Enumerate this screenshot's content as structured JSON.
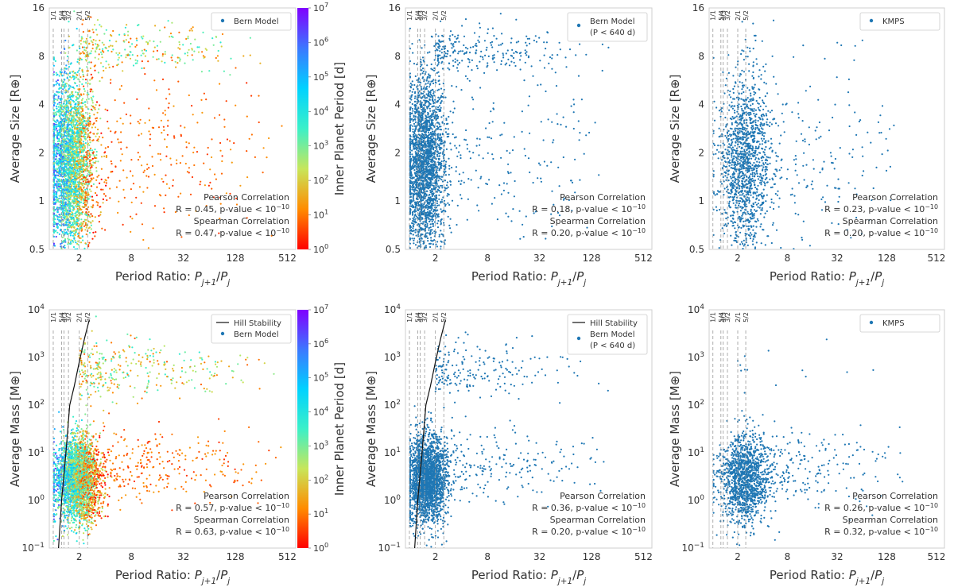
{
  "colors": {
    "point": "#1f77b4",
    "resonance_line": "#999999",
    "hill_line": "#111111",
    "frame": "#cfcfcf",
    "colormap": [
      "#ff0000",
      "#ff8c00",
      "#c8e65a",
      "#3cf0c8",
      "#00d2ff",
      "#3c78ff",
      "#8000ff"
    ]
  },
  "chart_data": [
    {
      "type": "scatter",
      "panel": "top-left",
      "xlabel": "Period Ratio: P_{j+1}/P_j",
      "ylabel": "Average Size [R⊕]",
      "xscale": "log2",
      "yscale": "log2",
      "xlim": [
        0.9,
        640
      ],
      "ylim": [
        0.5,
        16
      ],
      "xticks": [
        2,
        8,
        32,
        128,
        512
      ],
      "xtick_labels": [
        "2",
        "8",
        "32",
        "128",
        "512"
      ],
      "yticks": [
        0.5,
        1,
        2,
        4,
        8,
        16
      ],
      "ytick_labels": [
        "0.5",
        "1",
        "2",
        "4",
        "8",
        "16"
      ],
      "resonances": [
        1.0,
        1.25,
        1.333,
        1.5,
        2.0,
        2.5
      ],
      "resonance_labels": [
        "1/1",
        "5/4",
        "4/3",
        "3/2",
        "2/1",
        "5/2"
      ],
      "legend": [
        "Bern Model"
      ],
      "legend_loc": "top-right",
      "colorbar": {
        "label": "Inner Planet Period [d]",
        "ticks": [
          "10⁰",
          "10¹",
          "10²",
          "10³",
          "10⁴",
          "10⁵",
          "10⁶",
          "10⁷"
        ],
        "range": [
          1,
          10000000
        ]
      },
      "annotation": [
        "Pearson Correlation",
        "R = 0.45, p-value < 10⁻¹⁰",
        "Spearman Correlation",
        "R = 0.47, p-value < 10⁻¹⁰"
      ],
      "generator": {
        "kind": "size",
        "seed": 11,
        "n_main": 3000,
        "n_tail": 320,
        "n_giant": 260,
        "x_center": 1.6,
        "x_spread": 0.95,
        "tail_max": 512,
        "colored": true
      }
    },
    {
      "type": "scatter",
      "panel": "top-middle",
      "xlabel": "Period Ratio: P_{j+1}/P_j",
      "ylabel": "Average Size [R⊕]",
      "xscale": "log2",
      "yscale": "log2",
      "xlim": [
        0.9,
        640
      ],
      "ylim": [
        0.5,
        16
      ],
      "xticks": [
        2,
        8,
        32,
        128,
        512
      ],
      "xtick_labels": [
        "2",
        "8",
        "32",
        "128",
        "512"
      ],
      "yticks": [
        0.5,
        1,
        2,
        4,
        8,
        16
      ],
      "ytick_labels": [
        "0.5",
        "1",
        "2",
        "4",
        "8",
        "16"
      ],
      "resonances": [
        1.0,
        1.25,
        1.333,
        1.5,
        2.0,
        2.5
      ],
      "resonance_labels": [
        "1/1",
        "5/4",
        "4/3",
        "3/2",
        "2/1",
        "5/2"
      ],
      "legend": [
        "Bern Model",
        "(P < 640 d)"
      ],
      "legend_loc": "top-right",
      "annotation": [
        "Pearson Correlation",
        "R = 0.18, p-value < 10⁻¹⁰",
        "Spearman Correlation",
        "R = 0.20, p-value < 10⁻¹⁰"
      ],
      "generator": {
        "kind": "size",
        "seed": 23,
        "n_main": 2300,
        "n_tail": 220,
        "n_giant": 230,
        "x_center": 1.5,
        "x_spread": 0.8,
        "tail_max": 256,
        "colored": false
      }
    },
    {
      "type": "scatter",
      "panel": "top-right",
      "xlabel": "Period Ratio: P_{j+1}/P_j",
      "ylabel": "Average Size [R⊕]",
      "xscale": "log2",
      "yscale": "log2",
      "xlim": [
        0.9,
        640
      ],
      "ylim": [
        0.5,
        16
      ],
      "xticks": [
        2,
        8,
        32,
        128,
        512
      ],
      "xtick_labels": [
        "2",
        "8",
        "32",
        "128",
        "512"
      ],
      "yticks": [
        0.5,
        1,
        2,
        4,
        8,
        16
      ],
      "ytick_labels": [
        "0.5",
        "1",
        "2",
        "4",
        "8",
        "16"
      ],
      "resonances": [
        1.0,
        1.25,
        1.333,
        1.5,
        2.0,
        2.5
      ],
      "resonance_labels": [
        "1/1",
        "5/4",
        "4/3",
        "3/2",
        "2/1",
        "5/2"
      ],
      "legend": [
        "KMPS"
      ],
      "legend_loc": "top-right",
      "annotation": [
        "Pearson Correlation",
        "R = 0.23, p-value < 10⁻¹⁰",
        "Spearman Correlation",
        "R = 0.20, p-value < 10⁻¹⁰"
      ],
      "generator": {
        "kind": "size",
        "seed": 37,
        "n_main": 1300,
        "n_tail": 260,
        "n_giant": 20,
        "x_center": 2.4,
        "x_spread": 1.1,
        "tail_max": 300,
        "colored": false
      }
    },
    {
      "type": "scatter",
      "panel": "bottom-left",
      "xlabel": "Period Ratio: P_{j+1}/P_j",
      "ylabel": "Average Mass [M⊕]",
      "xscale": "log2",
      "yscale": "log10",
      "xlim": [
        0.9,
        640
      ],
      "ylim": [
        0.1,
        10000
      ],
      "xticks": [
        2,
        8,
        32,
        128,
        512
      ],
      "xtick_labels": [
        "2",
        "8",
        "32",
        "128",
        "512"
      ],
      "yticks": [
        0.1,
        1,
        10,
        100,
        1000,
        10000
      ],
      "ytick_labels": [
        "10⁻¹",
        "10⁰",
        "10¹",
        "10²",
        "10³",
        "10⁴"
      ],
      "resonances": [
        1.0,
        1.25,
        1.333,
        1.5,
        2.0,
        2.5
      ],
      "resonance_labels": [
        "1/1",
        "5/4",
        "4/3",
        "3/2",
        "2/1",
        "5/2"
      ],
      "legend": [
        "Hill Stability",
        "Bern Model"
      ],
      "legend_loc": "top-right",
      "hill_curve": {
        "x": [
          1.15,
          1.25,
          1.4,
          1.55,
          1.75,
          2.0,
          2.3,
          2.6
        ],
        "y": [
          0.1,
          1,
          10,
          100,
          250,
          800,
          2500,
          6000
        ]
      },
      "colorbar": {
        "label": "Inner Planet Period [d]",
        "ticks": [
          "10⁰",
          "10¹",
          "10²",
          "10³",
          "10⁴",
          "10⁵",
          "10⁶",
          "10⁷"
        ],
        "range": [
          1,
          10000000
        ]
      },
      "annotation": [
        "Pearson Correlation",
        "R = 0.57, p-value < 10⁻¹⁰",
        "Spearman Correlation",
        "R = 0.63, p-value < 10⁻¹⁰"
      ],
      "generator": {
        "kind": "mass",
        "seed": 53,
        "n_main": 3000,
        "n_tail": 320,
        "n_giant": 330,
        "x_center": 1.9,
        "x_spread": 0.95,
        "tail_max": 512,
        "colored": true
      }
    },
    {
      "type": "scatter",
      "panel": "bottom-middle",
      "xlabel": "Period Ratio: P_{j+1}/P_j",
      "ylabel": "Average Mass [M⊕]",
      "xscale": "log2",
      "yscale": "log10",
      "xlim": [
        0.9,
        640
      ],
      "ylim": [
        0.1,
        10000
      ],
      "xticks": [
        2,
        8,
        32,
        128,
        512
      ],
      "xtick_labels": [
        "2",
        "8",
        "32",
        "128",
        "512"
      ],
      "yticks": [
        0.1,
        1,
        10,
        100,
        1000,
        10000
      ],
      "ytick_labels": [
        "10⁻¹",
        "10⁰",
        "10¹",
        "10²",
        "10³",
        "10⁴"
      ],
      "resonances": [
        1.0,
        1.25,
        1.333,
        1.5,
        2.0,
        2.5
      ],
      "resonance_labels": [
        "1/1",
        "5/4",
        "4/3",
        "3/2",
        "2/1",
        "5/2"
      ],
      "legend": [
        "Hill Stability",
        "Bern Model",
        "(P < 640 d)"
      ],
      "legend_loc": "top-right",
      "hill_curve": {
        "x": [
          1.15,
          1.25,
          1.4,
          1.55,
          1.75,
          2.0,
          2.3,
          2.6
        ],
        "y": [
          0.1,
          1,
          10,
          100,
          250,
          800,
          2500,
          6000
        ]
      },
      "annotation": [
        "Pearson Correlation",
        "R = 0.36, p-value < 10⁻¹⁰",
        "Spearman Correlation",
        "R = 0.20, p-value < 10⁻¹⁰"
      ],
      "generator": {
        "kind": "mass",
        "seed": 71,
        "n_main": 2300,
        "n_tail": 230,
        "n_giant": 200,
        "x_center": 1.6,
        "x_spread": 0.8,
        "tail_max": 256,
        "colored": false
      }
    },
    {
      "type": "scatter",
      "panel": "bottom-right",
      "xlabel": "Period Ratio: P_{j+1}/P_j",
      "ylabel": "Average Mass [M⊕]",
      "xscale": "log2",
      "yscale": "log10",
      "xlim": [
        0.9,
        640
      ],
      "ylim": [
        0.1,
        10000
      ],
      "xticks": [
        2,
        8,
        32,
        128,
        512
      ],
      "xtick_labels": [
        "2",
        "8",
        "32",
        "128",
        "512"
      ],
      "yticks": [
        0.1,
        1,
        10,
        100,
        1000,
        10000
      ],
      "ytick_labels": [
        "10⁻¹",
        "10⁰",
        "10¹",
        "10²",
        "10³",
        "10⁴"
      ],
      "resonances": [
        1.0,
        1.25,
        1.333,
        1.5,
        2.0,
        2.5
      ],
      "resonance_labels": [
        "1/1",
        "5/4",
        "4/3",
        "3/2",
        "2/1",
        "5/2"
      ],
      "legend": [
        "KMPS"
      ],
      "legend_loc": "top-right",
      "annotation": [
        "Pearson Correlation",
        "R = 0.26, p-value < 10⁻¹⁰",
        "Spearman Correlation",
        "R = 0.32, p-value < 10⁻¹⁰"
      ],
      "generator": {
        "kind": "mass",
        "seed": 89,
        "n_main": 1300,
        "n_tail": 260,
        "n_giant": 14,
        "x_center": 2.4,
        "x_spread": 1.1,
        "tail_max": 300,
        "colored": false
      }
    }
  ]
}
